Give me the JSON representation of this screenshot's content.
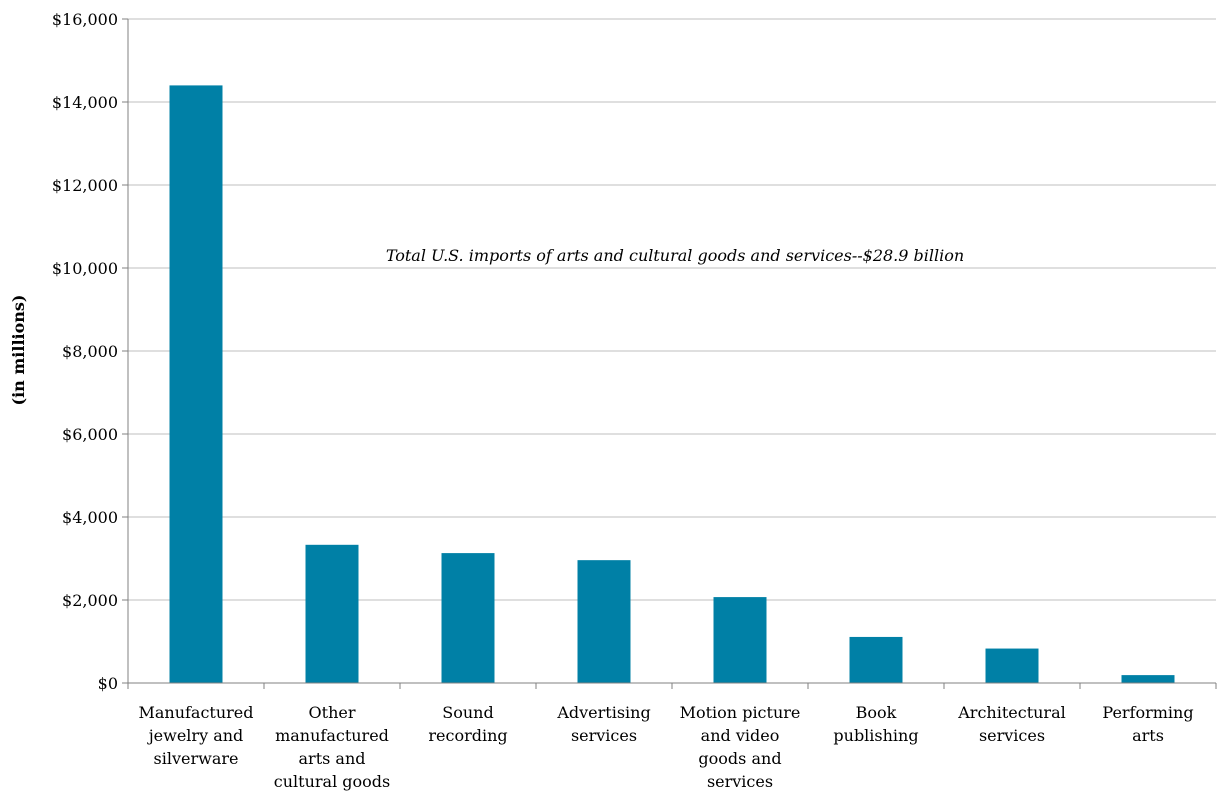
{
  "chart_data": {
    "type": "bar",
    "categories": [
      [
        "Manufactured",
        "jewelry and",
        "silverware"
      ],
      [
        "Other",
        "manufactured",
        "arts and",
        "cultural goods"
      ],
      [
        "Sound",
        "recording"
      ],
      [
        "Advertising",
        "services"
      ],
      [
        "Motion picture",
        "and video",
        "goods and",
        "services"
      ],
      [
        "Book",
        "publishing"
      ],
      [
        "Architectural",
        "services"
      ],
      [
        "Performing",
        "arts"
      ]
    ],
    "values": [
      14400,
      3330,
      3130,
      2960,
      2070,
      1110,
      830,
      190
    ],
    "ylabel": "(in millions)",
    "ylim": [
      0,
      16000
    ],
    "yticks": [
      0,
      2000,
      4000,
      6000,
      8000,
      10000,
      12000,
      14000,
      16000
    ],
    "ytick_labels": [
      "$0",
      "$2,000",
      "$4,000",
      "$6,000",
      "$8,000",
      "$10,000",
      "$12,000",
      "$14,000",
      "$16,000"
    ],
    "annotation": "Total U.S. imports of arts and cultural goods and services--$28.9 billion",
    "grid": true,
    "colors": {
      "bar": "#0080A6",
      "grid": "#BFBFBF",
      "axis": "#808080"
    }
  }
}
